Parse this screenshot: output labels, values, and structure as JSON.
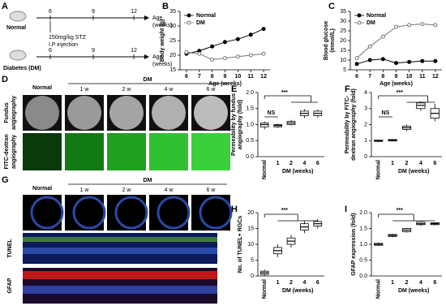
{
  "timeline": {
    "label": "A",
    "normal": "Normal",
    "dm": "Diabetes (DM)",
    "treatment": [
      "150mg/kg STZ",
      "I.P injection"
    ],
    "ticks": [
      "6",
      "9",
      "12"
    ],
    "axis_label": [
      "Age",
      "(weeks)"
    ]
  },
  "fundus": {
    "label": "D",
    "normal": "Normal",
    "group": "DM",
    "columns": [
      "1 w",
      "2 w",
      "4 w",
      "6 w"
    ],
    "rows": [
      [
        "Fundus",
        "angiography"
      ],
      [
        "FITC-dextran",
        "angiography"
      ]
    ]
  },
  "retina": {
    "label": "G",
    "normal": "Normal",
    "group": "DM",
    "columns": [
      "1 w",
      "2 w",
      "4 w",
      "6 w"
    ],
    "rows": [
      "TUNEL",
      "GFAP"
    ]
  },
  "chart_data": [
    {
      "type": "line",
      "label": "B",
      "xlabel": "Age (weeks)",
      "ylabel": [
        "Body weight (g)"
      ],
      "x": [
        6,
        7,
        8,
        9,
        10,
        11,
        12
      ],
      "xlim": [
        5.5,
        12.5
      ],
      "xticks": [
        6,
        7,
        8,
        9,
        10,
        11,
        12
      ],
      "ylim": [
        15,
        35
      ],
      "yticks": [
        15,
        20,
        25,
        30,
        35
      ],
      "legend": "upper-left",
      "series": [
        {
          "name": "Normal",
          "color": "#000000",
          "marker": "filled",
          "values": [
            20.5,
            21.5,
            23,
            24.5,
            25.5,
            27,
            29
          ]
        },
        {
          "name": "DM",
          "color": "#777777",
          "marker": "open",
          "values": [
            21,
            20.5,
            18.5,
            19,
            19.5,
            20,
            20.5
          ]
        }
      ]
    },
    {
      "type": "line",
      "label": "C",
      "xlabel": "Age (weeks)",
      "ylabel": [
        "Blood glucose",
        "(mmol/L)"
      ],
      "x": [
        6,
        7,
        8,
        9,
        10,
        11,
        12
      ],
      "xlim": [
        5.5,
        12.5
      ],
      "xticks": [
        6,
        7,
        8,
        9,
        10,
        11,
        12
      ],
      "ylim": [
        5,
        35
      ],
      "yticks": [
        5,
        10,
        15,
        20,
        25,
        30,
        35
      ],
      "legend": "upper-left",
      "series": [
        {
          "name": "Normal",
          "color": "#000000",
          "marker": "filled",
          "values": [
            8,
            10,
            10.5,
            8.5,
            9,
            9.5,
            9.5
          ]
        },
        {
          "name": "DM",
          "color": "#777777",
          "marker": "open",
          "values": [
            11,
            17,
            22,
            27,
            28,
            28.5,
            28
          ]
        }
      ]
    },
    {
      "type": "box",
      "label": "E",
      "xlabel": "DM (weeks)",
      "ylabel": [
        "Permeability by fundus",
        "angiography (fold)"
      ],
      "categories": [
        "Normal",
        "1",
        "2",
        "4",
        "6"
      ],
      "ylim": [
        0,
        2
      ],
      "yticks": [
        {
          "value": 0,
          "label": "0.0"
        },
        0.5,
        {
          "value": 1,
          "label": "1.0"
        },
        1.5,
        {
          "value": 2,
          "label": "2.0"
        }
      ],
      "values": [
        1.0,
        0.97,
        1.05,
        1.35,
        1.35
      ],
      "q1": [
        0.93,
        0.93,
        1.0,
        1.28,
        1.28
      ],
      "q3": [
        1.05,
        1.0,
        1.1,
        1.42,
        1.42
      ],
      "whisker_low": [
        0.85,
        0.9,
        0.97,
        1.2,
        1.22
      ],
      "whisker_high": [
        1.1,
        1.03,
        1.15,
        1.48,
        1.47
      ],
      "annotations": [
        "NS",
        "***"
      ]
    },
    {
      "type": "box",
      "label": "F",
      "xlabel": "DM (weeks)",
      "ylabel": [
        "Permeability by FITC-",
        "dextran angiography (fold)"
      ],
      "categories": [
        "Normal",
        "1",
        "2",
        "4",
        "6"
      ],
      "ylim": [
        0,
        4
      ],
      "yticks": [
        0,
        1,
        2,
        3,
        4
      ],
      "values": [
        1.0,
        1.02,
        1.8,
        3.2,
        2.7
      ],
      "q1": [
        0.95,
        0.98,
        1.7,
        3.0,
        2.4
      ],
      "q3": [
        1.03,
        1.07,
        1.9,
        3.35,
        3.0
      ],
      "whisker_low": [
        0.9,
        0.95,
        1.6,
        2.85,
        2.2
      ],
      "whisker_high": [
        1.05,
        1.1,
        2.0,
        3.45,
        3.3
      ],
      "annotations": [
        "NS",
        "***"
      ]
    },
    {
      "type": "box",
      "label": "H",
      "xlabel": "DM (weeks)",
      "ylabel": [
        "No. of TUNEL+ RGCs"
      ],
      "categories": [
        "Normal",
        "1",
        "2",
        "4",
        "6"
      ],
      "ylim": [
        0,
        20
      ],
      "yticks": [
        0,
        5,
        10,
        15,
        20
      ],
      "values": [
        1,
        8,
        11,
        15.5,
        16.5
      ],
      "q1": [
        0.5,
        7,
        10,
        14.5,
        15.8
      ],
      "q3": [
        1.5,
        9,
        12,
        16.5,
        17.2
      ],
      "whisker_low": [
        0,
        6,
        9,
        13.5,
        15
      ],
      "whisker_high": [
        2,
        10,
        13,
        17.5,
        18
      ],
      "annotations": [
        "***"
      ]
    },
    {
      "type": "box",
      "label": "I",
      "xlabel": "DM (weeks)",
      "ylabel": [
        "GFAP expression (fold)"
      ],
      "categories": [
        "Normal",
        "1",
        "2",
        "4",
        "6"
      ],
      "ylim": [
        0,
        2
      ],
      "yticks": [
        {
          "value": 0,
          "label": "0.0"
        },
        0.5,
        {
          "value": 1,
          "label": "1.0"
        },
        1.5,
        {
          "value": 2,
          "label": "2.0"
        }
      ],
      "values": [
        1.0,
        1.28,
        1.45,
        1.65,
        1.65
      ],
      "q1": [
        0.97,
        1.25,
        1.4,
        1.62,
        1.62
      ],
      "q3": [
        1.03,
        1.31,
        1.5,
        1.7,
        1.68
      ],
      "whisker_low": [
        0.95,
        1.22,
        1.37,
        1.58,
        1.6
      ],
      "whisker_high": [
        1.05,
        1.33,
        1.52,
        1.72,
        1.7
      ],
      "annotations": [
        "***"
      ]
    }
  ]
}
